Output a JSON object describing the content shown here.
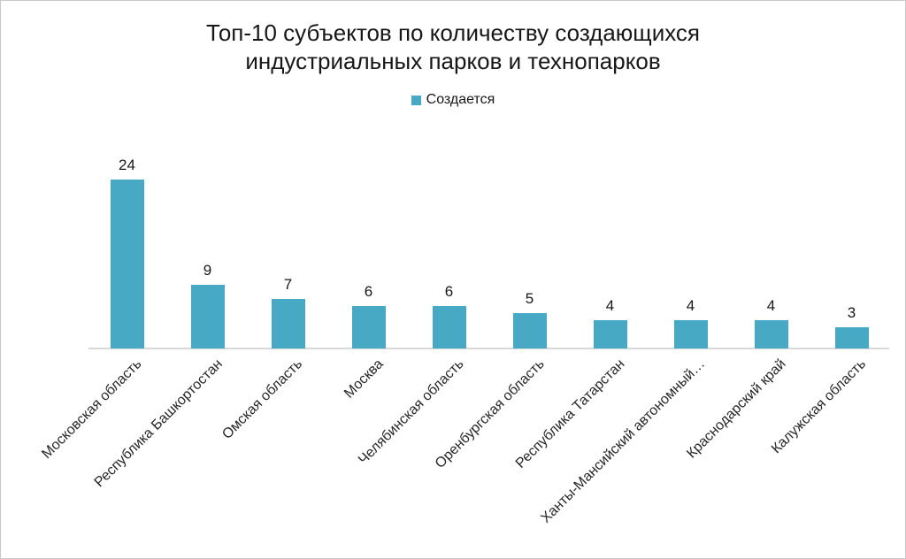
{
  "chart_data": {
    "type": "bar",
    "title": "Топ-10 субъектов по количеству создающихся индустриальных парков и технопарков",
    "title_lines": [
      "Топ-10 субъектов по количеству создающихся",
      "индустриальных парков и технопарков"
    ],
    "legend": {
      "label": "Создается",
      "position": "top-center",
      "swatch_color": "#48a9c5"
    },
    "series": [
      {
        "name": "Создается",
        "values": [
          24,
          9,
          7,
          6,
          6,
          5,
          4,
          4,
          4,
          3
        ]
      }
    ],
    "categories": [
      "Московская область",
      "Республика Башкортостан",
      "Омская область",
      "Москва",
      "Челябинская область",
      "Оренбургская область",
      "Республика Татарстан",
      "Ханты-Мансийский автономный…",
      "Краснодарский край",
      "Калужская область"
    ],
    "data_labels": [
      24,
      9,
      7,
      6,
      6,
      5,
      4,
      4,
      4,
      3
    ],
    "xlabel": "",
    "ylabel": "",
    "ylim": [
      0,
      25
    ],
    "grid": false,
    "bar_color": "#48a9c5",
    "axis_line_color": "#d9d9d9",
    "label_rotation_deg": -45
  }
}
